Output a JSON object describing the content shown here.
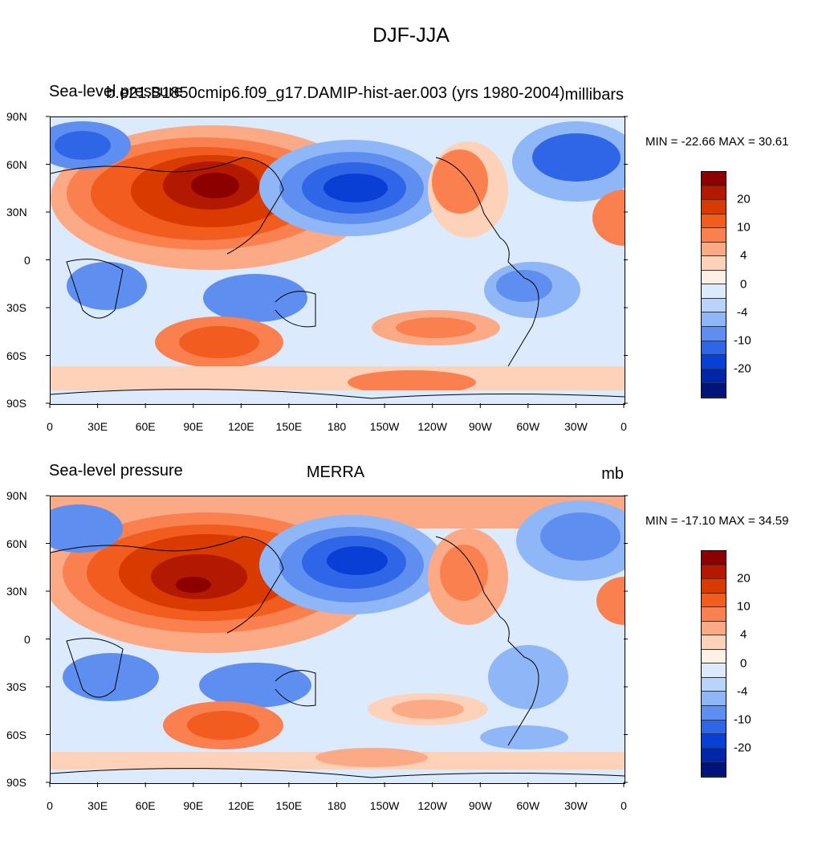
{
  "figure": {
    "title": "DJF-JJA"
  },
  "panels": [
    {
      "left_title": "Sea-level pressure",
      "center_title": "b.e21.B1850cmip6.f09_g17.DAMIP-hist-aer.003 (yrs 1980-2004)",
      "right_title": "millibars",
      "min_max": "MIN = -22.66 MAX =  30.61"
    },
    {
      "left_title": "Sea-level pressure",
      "center_title": "MERRA",
      "right_title": "mb",
      "min_max": "MIN = -17.10 MAX =  34.59"
    }
  ],
  "lat_labels": [
    "90N",
    "60N",
    "30N",
    "0",
    "30S",
    "60S",
    "90S"
  ],
  "lon_labels": [
    "0",
    "30E",
    "60E",
    "90E",
    "120E",
    "150E",
    "180",
    "150W",
    "120W",
    "90W",
    "60W",
    "30W",
    "0"
  ],
  "colorbar": {
    "labels": [
      "20",
      "10",
      "4",
      "0",
      "-4",
      "-10",
      "-20"
    ],
    "colors": [
      "#8c0000",
      "#b31800",
      "#d93a00",
      "#f25c1f",
      "#fa8050",
      "#fcaa85",
      "#fdd2b8",
      "#fff0e6",
      "#dbeafd",
      "#b8d4fb",
      "#8fb6f7",
      "#5e8ff0",
      "#2f66e8",
      "#0a3fd6",
      "#0026a8",
      "#00137a"
    ]
  },
  "chart_data": {
    "type": "heatmap",
    "variable": "Sea-level pressure",
    "season": "DJF-JJA",
    "levels": [
      -25,
      -20,
      -15,
      -10,
      -8,
      -6,
      -4,
      -2,
      0,
      2,
      4,
      6,
      8,
      10,
      15,
      20,
      25
    ],
    "panels": [
      {
        "source": "b.e21.B1850cmip6.f09_g17.DAMIP-hist-aer.003 (yrs 1980-2004)",
        "units": "millibars",
        "min": -22.66,
        "max": 30.61
      },
      {
        "source": "MERRA",
        "units": "mb",
        "min": -17.1,
        "max": 34.59
      }
    ]
  }
}
